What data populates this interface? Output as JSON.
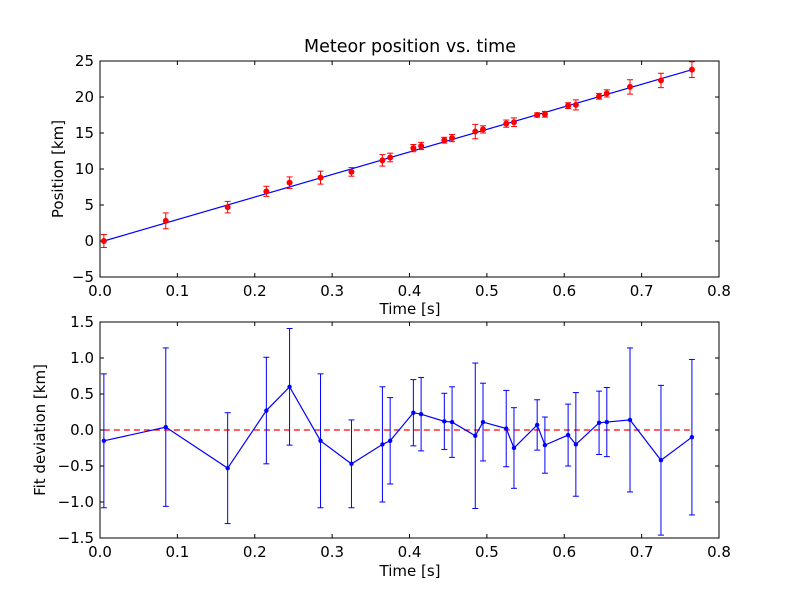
{
  "colors": {
    "background": "#ffffff",
    "fit_line": "#0000ff",
    "data_points": "#ff0000",
    "error_bars_top": "#ff0000",
    "deviation_line": "#0000ff",
    "zero_line": "#ff0000",
    "axes": "#000000"
  },
  "chart_data": [
    {
      "type": "scatter",
      "title": "Meteor position vs. time",
      "xlabel": "Time [s]",
      "ylabel": "Position [km]",
      "xlim": [
        0.0,
        0.8
      ],
      "ylim": [
        -5,
        25
      ],
      "xticks": [
        "0.0",
        "0.1",
        "0.2",
        "0.3",
        "0.4",
        "0.5",
        "0.6",
        "0.7",
        "0.8"
      ],
      "yticks": [
        "−5",
        "0",
        "5",
        "10",
        "15",
        "20",
        "25"
      ],
      "xtick_values": [
        0.0,
        0.1,
        0.2,
        0.3,
        0.4,
        0.5,
        0.6,
        0.7,
        0.8
      ],
      "ytick_values": [
        -5,
        0,
        5,
        10,
        15,
        20,
        25
      ],
      "grid": false,
      "series": [
        {
          "kind": "points-with-error-bars",
          "x": [
            0.005,
            0.085,
            0.165,
            0.215,
            0.245,
            0.285,
            0.325,
            0.365,
            0.375,
            0.405,
            0.415,
            0.445,
            0.455,
            0.485,
            0.495,
            0.525,
            0.535,
            0.565,
            0.575,
            0.605,
            0.615,
            0.645,
            0.655,
            0.685,
            0.725,
            0.765
          ],
          "y": [
            0.0,
            2.8,
            4.7,
            6.9,
            8.1,
            8.8,
            9.6,
            11.2,
            11.6,
            12.9,
            13.2,
            14.0,
            14.3,
            15.2,
            15.5,
            16.3,
            16.5,
            17.5,
            17.6,
            18.8,
            18.9,
            20.1,
            20.5,
            21.4,
            22.3,
            23.8
          ],
          "yerr": [
            0.9,
            1.1,
            0.8,
            0.7,
            0.8,
            0.9,
            0.6,
            0.8,
            0.6,
            0.5,
            0.5,
            0.4,
            0.5,
            1.0,
            0.5,
            0.5,
            0.6,
            0.3,
            0.4,
            0.4,
            0.7,
            0.4,
            0.5,
            1.0,
            1.0,
            1.1
          ]
        },
        {
          "kind": "fit-line",
          "x": [
            0.005,
            0.765
          ],
          "y": [
            0.0,
            23.8
          ]
        }
      ]
    },
    {
      "type": "line",
      "title": "",
      "xlabel": "Time [s]",
      "ylabel": "Fit deviation [km]",
      "xlim": [
        0.0,
        0.8
      ],
      "ylim": [
        -1.5,
        1.5
      ],
      "xticks": [
        "0.0",
        "0.1",
        "0.2",
        "0.3",
        "0.4",
        "0.5",
        "0.6",
        "0.7",
        "0.8"
      ],
      "yticks": [
        "−1.5",
        "−1.0",
        "−0.5",
        "0.0",
        "0.5",
        "1.0",
        "1.5"
      ],
      "xtick_values": [
        0.0,
        0.1,
        0.2,
        0.3,
        0.4,
        0.5,
        0.6,
        0.7,
        0.8
      ],
      "ytick_values": [
        -1.5,
        -1.0,
        -0.5,
        0.0,
        0.5,
        1.0,
        1.5
      ],
      "grid": false,
      "reference_line": {
        "y": 0.0,
        "style": "dashed"
      },
      "series": [
        {
          "kind": "line-with-error-bars",
          "x": [
            0.005,
            0.085,
            0.165,
            0.215,
            0.245,
            0.285,
            0.325,
            0.365,
            0.375,
            0.405,
            0.415,
            0.445,
            0.455,
            0.485,
            0.495,
            0.525,
            0.535,
            0.565,
            0.575,
            0.605,
            0.615,
            0.645,
            0.655,
            0.685,
            0.725,
            0.765
          ],
          "y": [
            -0.15,
            0.04,
            -0.53,
            0.27,
            0.6,
            -0.15,
            -0.47,
            -0.2,
            -0.15,
            0.24,
            0.22,
            0.12,
            0.11,
            -0.08,
            0.11,
            0.02,
            -0.25,
            0.07,
            -0.21,
            -0.07,
            -0.2,
            0.1,
            0.11,
            0.14,
            -0.42,
            -0.1
          ],
          "yerr": [
            0.93,
            1.1,
            0.77,
            0.74,
            0.81,
            0.93,
            0.61,
            0.8,
            0.6,
            0.46,
            0.51,
            0.39,
            0.49,
            1.01,
            0.54,
            0.53,
            0.56,
            0.35,
            0.39,
            0.43,
            0.72,
            0.44,
            0.48,
            1.0,
            1.04,
            1.08
          ]
        }
      ]
    }
  ]
}
